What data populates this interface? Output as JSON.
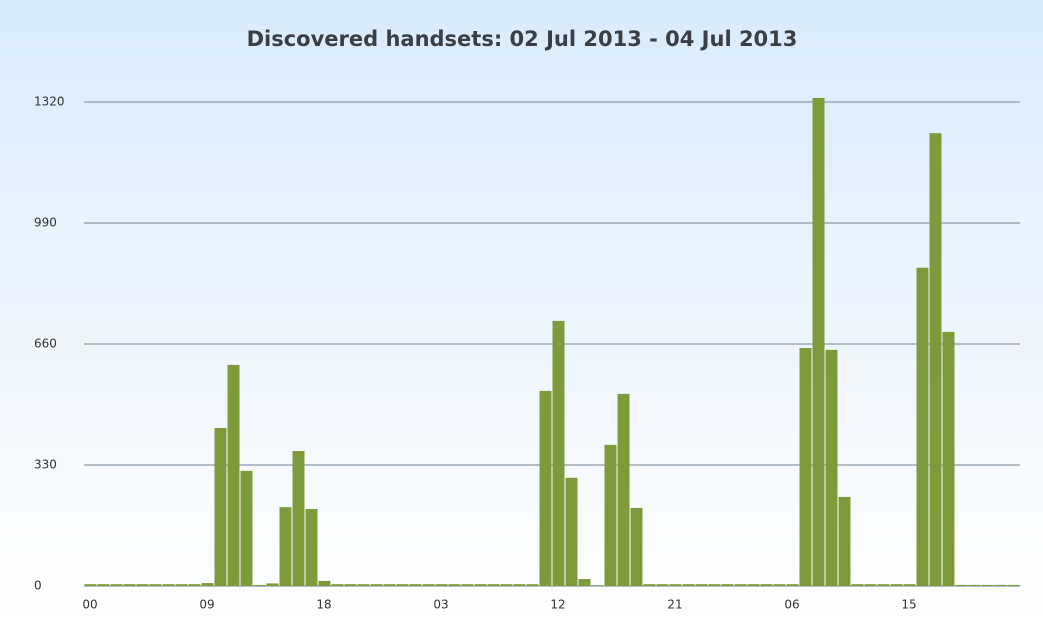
{
  "chart_data": {
    "type": "bar",
    "title": "Discovered handsets: 02 Jul 2013 - 04 Jul 2013",
    "categories": [
      "00",
      null,
      null,
      null,
      null,
      null,
      null,
      null,
      null,
      "09",
      null,
      null,
      null,
      null,
      null,
      null,
      null,
      null,
      "18",
      null,
      null,
      null,
      null,
      null,
      null,
      null,
      null,
      "03",
      null,
      null,
      null,
      null,
      null,
      null,
      null,
      null,
      "12",
      null,
      null,
      null,
      null,
      null,
      null,
      null,
      null,
      "21",
      null,
      null,
      null,
      null,
      null,
      null,
      null,
      null,
      "06",
      null,
      null,
      null,
      null,
      null,
      null,
      null,
      null,
      "15",
      null,
      null,
      null,
      null,
      null,
      null,
      null,
      null
    ],
    "values": [
      5,
      5,
      5,
      5,
      5,
      5,
      5,
      5,
      5,
      8,
      431,
      603,
      314,
      3,
      7,
      215,
      368,
      210,
      14,
      5,
      5,
      5,
      5,
      5,
      5,
      5,
      5,
      5,
      5,
      5,
      5,
      5,
      5,
      5,
      5,
      532,
      723,
      295,
      19,
      2,
      385,
      524,
      213,
      5,
      5,
      5,
      5,
      5,
      5,
      5,
      5,
      5,
      5,
      5,
      5,
      649,
      1331,
      644,
      243,
      5,
      5,
      5,
      5,
      5,
      868,
      1235,
      693,
      3,
      3,
      3,
      3,
      3
    ],
    "color": "#7e9b3c",
    "ylim": [
      0,
      1320
    ],
    "yticks": [
      0,
      330,
      660,
      990,
      1320
    ],
    "grid": true
  }
}
